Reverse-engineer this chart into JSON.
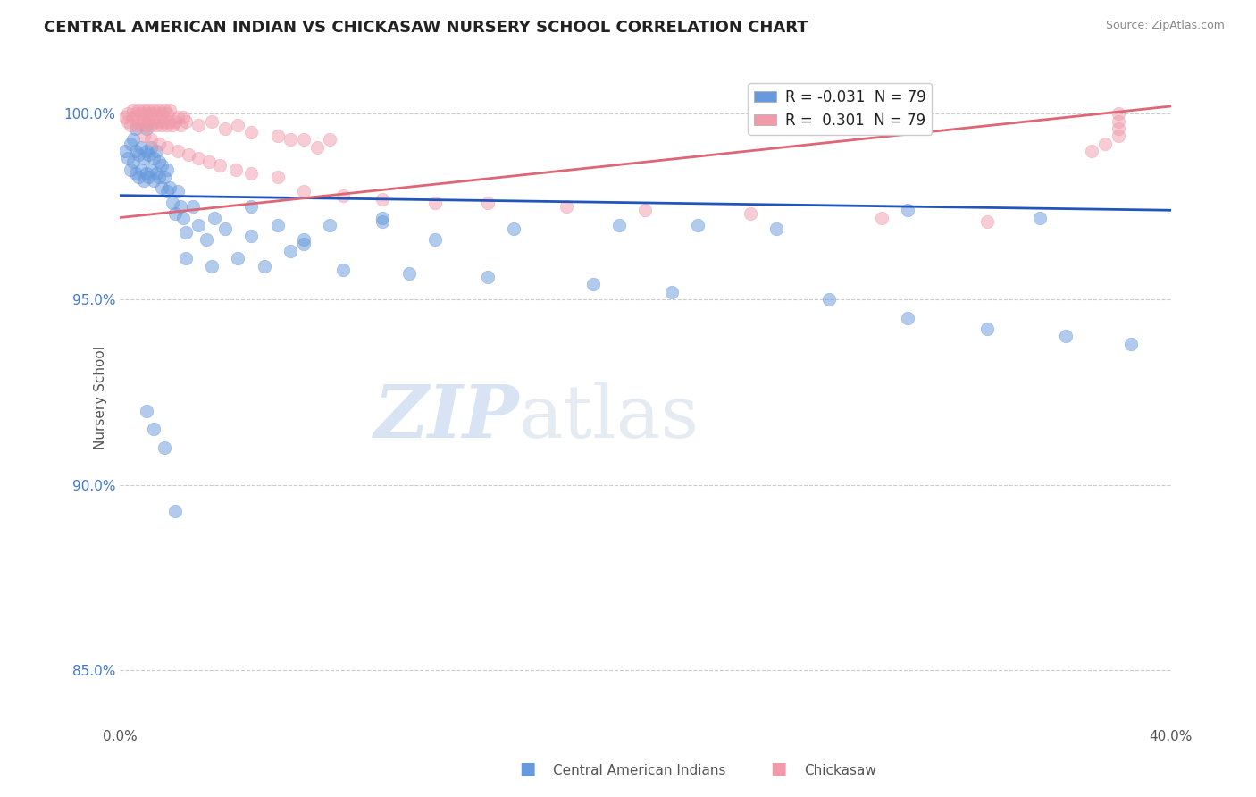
{
  "title": "CENTRAL AMERICAN INDIAN VS CHICKASAW NURSERY SCHOOL CORRELATION CHART",
  "source_text": "Source: ZipAtlas.com",
  "ylabel": "Nursery School",
  "xlim": [
    0.0,
    0.4
  ],
  "ylim": [
    0.835,
    1.012
  ],
  "yticks": [
    0.85,
    0.9,
    0.95,
    1.0
  ],
  "yticklabels": [
    "85.0%",
    "90.0%",
    "95.0%",
    "100.0%"
  ],
  "R_blue": -0.031,
  "R_pink": 0.301,
  "N": 79,
  "color_blue": "#6699dd",
  "color_pink": "#f09aaa",
  "trendline_blue": "#2255bb",
  "trendline_pink": "#dd6677",
  "watermark_zip": "ZIP",
  "watermark_atlas": "atlas",
  "blue_points_x": [
    0.002,
    0.003,
    0.004,
    0.004,
    0.005,
    0.005,
    0.006,
    0.006,
    0.006,
    0.007,
    0.007,
    0.008,
    0.008,
    0.009,
    0.009,
    0.01,
    0.01,
    0.01,
    0.011,
    0.011,
    0.012,
    0.012,
    0.013,
    0.013,
    0.014,
    0.014,
    0.015,
    0.015,
    0.016,
    0.016,
    0.017,
    0.018,
    0.018,
    0.019,
    0.02,
    0.021,
    0.022,
    0.023,
    0.024,
    0.025,
    0.028,
    0.03,
    0.033,
    0.036,
    0.04,
    0.05,
    0.06,
    0.07,
    0.08,
    0.1,
    0.05,
    0.07,
    0.1,
    0.12,
    0.15,
    0.19,
    0.22,
    0.25,
    0.3,
    0.35,
    0.025,
    0.035,
    0.045,
    0.055,
    0.065,
    0.085,
    0.11,
    0.14,
    0.18,
    0.21,
    0.27,
    0.3,
    0.33,
    0.36,
    0.385,
    0.01,
    0.013,
    0.017,
    0.021
  ],
  "blue_points_y": [
    0.99,
    0.988,
    0.985,
    0.992,
    0.987,
    0.993,
    0.984,
    0.99,
    0.996,
    0.983,
    0.989,
    0.985,
    0.991,
    0.982,
    0.988,
    0.984,
    0.99,
    0.996,
    0.983,
    0.989,
    0.985,
    0.991,
    0.982,
    0.988,
    0.984,
    0.99,
    0.983,
    0.987,
    0.98,
    0.986,
    0.983,
    0.979,
    0.985,
    0.98,
    0.976,
    0.973,
    0.979,
    0.975,
    0.972,
    0.968,
    0.975,
    0.97,
    0.966,
    0.972,
    0.969,
    0.975,
    0.97,
    0.965,
    0.97,
    0.971,
    0.967,
    0.966,
    0.972,
    0.966,
    0.969,
    0.97,
    0.97,
    0.969,
    0.974,
    0.972,
    0.961,
    0.959,
    0.961,
    0.959,
    0.963,
    0.958,
    0.957,
    0.956,
    0.954,
    0.952,
    0.95,
    0.945,
    0.942,
    0.94,
    0.938,
    0.92,
    0.915,
    0.91,
    0.893
  ],
  "pink_points_x": [
    0.002,
    0.003,
    0.003,
    0.004,
    0.005,
    0.005,
    0.006,
    0.006,
    0.007,
    0.007,
    0.008,
    0.008,
    0.009,
    0.009,
    0.01,
    0.01,
    0.011,
    0.011,
    0.012,
    0.012,
    0.013,
    0.013,
    0.014,
    0.014,
    0.015,
    0.015,
    0.016,
    0.016,
    0.017,
    0.017,
    0.018,
    0.018,
    0.019,
    0.019,
    0.02,
    0.021,
    0.022,
    0.023,
    0.024,
    0.025,
    0.03,
    0.035,
    0.04,
    0.045,
    0.05,
    0.06,
    0.065,
    0.07,
    0.075,
    0.08,
    0.009,
    0.012,
    0.015,
    0.018,
    0.022,
    0.026,
    0.03,
    0.034,
    0.038,
    0.044,
    0.05,
    0.06,
    0.07,
    0.085,
    0.1,
    0.12,
    0.14,
    0.17,
    0.2,
    0.24,
    0.29,
    0.33,
    0.38,
    0.38,
    0.38,
    0.38,
    0.375,
    0.37
  ],
  "pink_points_y": [
    0.999,
    0.998,
    1.0,
    0.997,
    0.999,
    1.001,
    0.997,
    1.0,
    0.998,
    1.001,
    0.997,
    1.0,
    0.998,
    1.001,
    0.997,
    1.0,
    0.998,
    1.001,
    0.997,
    1.0,
    0.998,
    1.001,
    0.997,
    1.0,
    0.998,
    1.001,
    0.997,
    1.0,
    0.998,
    1.001,
    0.997,
    1.0,
    0.998,
    1.001,
    0.997,
    0.998,
    0.999,
    0.997,
    0.999,
    0.998,
    0.997,
    0.998,
    0.996,
    0.997,
    0.995,
    0.994,
    0.993,
    0.993,
    0.991,
    0.993,
    0.994,
    0.993,
    0.992,
    0.991,
    0.99,
    0.989,
    0.988,
    0.987,
    0.986,
    0.985,
    0.984,
    0.983,
    0.979,
    0.978,
    0.977,
    0.976,
    0.976,
    0.975,
    0.974,
    0.973,
    0.972,
    0.971,
    1.0,
    0.998,
    0.996,
    0.994,
    0.992,
    0.99
  ]
}
